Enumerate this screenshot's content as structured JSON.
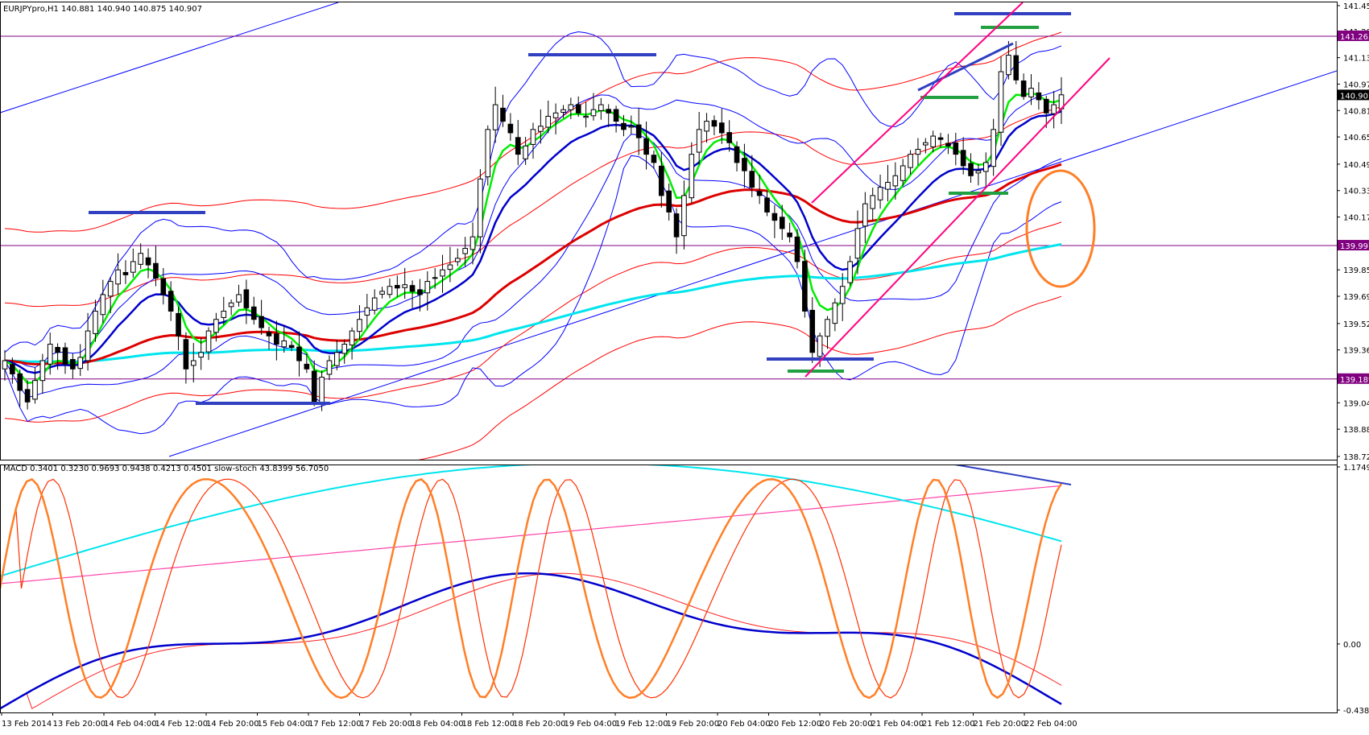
{
  "header": {
    "main_title": "EURJPYpro,H1  140.881 140.940 140.875 140.907",
    "sub_title": "MACD 0.3401 0.3230 0.9693 0.9438 0.4213 0.4501  slow-stoch 43.8399 56.7050"
  },
  "colors": {
    "background": "#ffffff",
    "grid_frame": "#000000",
    "bull_candle": "#ffffff",
    "bear_candle": "#000000",
    "ema_fast": "#00ee00",
    "ema_mid": "#0000cc",
    "ema_slow": "#dd0000",
    "ema_long": "#00e5ee",
    "bollinger_blue": "#0000ff",
    "envelope_red": "#ff0000",
    "level_line": "#800080",
    "trend_magenta": "#ff0080",
    "marker_blue": "#3040c0",
    "marker_green": "#20a040",
    "circle_orange": "#ff7f27",
    "macd_main": "#0000cc",
    "macd_signal": "#ff2020",
    "macd_cyan": "#00e5ee",
    "macd_pink": "#ff44aa",
    "stoch_orange": "#ff7f27",
    "stoch_red": "#ff3000"
  },
  "chart_data": [
    {
      "type": "candlestick",
      "symbol": "EURJPYpro",
      "timeframe": "H1",
      "title": "EURJPYpro,H1",
      "ohlc_last": {
        "open": 140.881,
        "high": 140.94,
        "low": 140.875,
        "close": 140.907
      },
      "ylim": [
        138.72,
        141.45
      ],
      "y_ticks": [
        "141.450",
        "141.295",
        "141.135",
        "140.975",
        "140.815",
        "140.655",
        "140.490",
        "140.330",
        "140.170",
        "139.850",
        "139.690",
        "139.525",
        "139.365",
        "139.045",
        "138.885",
        "138.720"
      ],
      "x_ticks": [
        "13 Feb 2014",
        "13 Feb 20:00",
        "14 Feb 04:00",
        "14 Feb 12:00",
        "14 Feb 20:00",
        "15 Feb 04:00",
        "17 Feb 12:00",
        "17 Feb 20:00",
        "18 Feb 04:00",
        "18 Feb 12:00",
        "18 Feb 20:00",
        "19 Feb 04:00",
        "19 Feb 12:00",
        "19 Feb 20:00",
        "20 Feb 04:00",
        "20 Feb 12:00",
        "20 Feb 20:00",
        "21 Feb 04:00",
        "21 Feb 12:00",
        "21 Feb 20:00",
        "22 Feb 04:00"
      ],
      "price_labels": [
        {
          "text": "141.265",
          "value": 141.265,
          "style": "level"
        },
        {
          "text": "140.907",
          "value": 140.907,
          "style": "current"
        },
        {
          "text": "139.997",
          "value": 139.997,
          "style": "level"
        },
        {
          "text": "139.189",
          "value": 139.189,
          "style": "level"
        }
      ],
      "horizontal_levels": [
        141.265,
        139.997,
        139.189
      ],
      "close_path": [
        139.3,
        139.22,
        139.12,
        139.05,
        139.18,
        139.3,
        139.4,
        139.35,
        139.28,
        139.25,
        139.32,
        139.48,
        139.6,
        139.7,
        139.78,
        139.85,
        139.82,
        139.9,
        139.95,
        139.88,
        139.8,
        139.7,
        139.6,
        139.45,
        139.25,
        139.3,
        139.35,
        139.48,
        139.55,
        139.6,
        139.65,
        139.7,
        139.62,
        139.55,
        139.5,
        139.45,
        139.4,
        139.42,
        139.38,
        139.3,
        139.25,
        139.05,
        139.2,
        139.3,
        139.35,
        139.4,
        139.48,
        139.55,
        139.62,
        139.68,
        139.72,
        139.75,
        139.74,
        139.76,
        139.72,
        139.7,
        139.78,
        139.8,
        139.85,
        139.88,
        139.92,
        139.98,
        140.05,
        140.4,
        140.7,
        140.85,
        140.75,
        140.68,
        140.55,
        140.6,
        140.7,
        140.72,
        140.78,
        140.8,
        140.82,
        140.85,
        140.8,
        140.78,
        140.82,
        140.85,
        140.8,
        140.75,
        140.7,
        140.72,
        140.65,
        140.55,
        140.5,
        140.3,
        140.2,
        140.05,
        140.3,
        140.55,
        140.7,
        140.75,
        140.72,
        140.68,
        140.62,
        140.5,
        140.45,
        140.35,
        140.3,
        140.2,
        140.15,
        140.1,
        140.05,
        139.9,
        139.6,
        139.35,
        139.45,
        139.55,
        139.65,
        139.75,
        139.9,
        140.1,
        140.25,
        140.3,
        140.35,
        140.38,
        140.42,
        140.48,
        140.55,
        140.58,
        140.62,
        140.66,
        140.64,
        140.6,
        140.55,
        140.48,
        140.42,
        140.45,
        140.5,
        140.7,
        141.05,
        141.15,
        141.0,
        140.9,
        140.95,
        140.88,
        140.8,
        140.85,
        140.91
      ],
      "overlays": [
        "EMA fast (green)",
        "EMA (blue)",
        "EMA (red)",
        "EMA long (cyan)",
        "Bollinger bands (blue)",
        "Envelopes (red)"
      ]
    },
    {
      "type": "line",
      "title": "MACD 0.3401 0.3230 0.9693 0.9438 0.4213 0.4501  slow-stoch 43.8399 56.7050",
      "ylim": [
        -0.4385,
        1.1749
      ],
      "y_ticks": [
        "1.1749",
        "0.00",
        "-0.4385"
      ],
      "indicators": [
        "MACD",
        "slow-stoch"
      ]
    }
  ]
}
